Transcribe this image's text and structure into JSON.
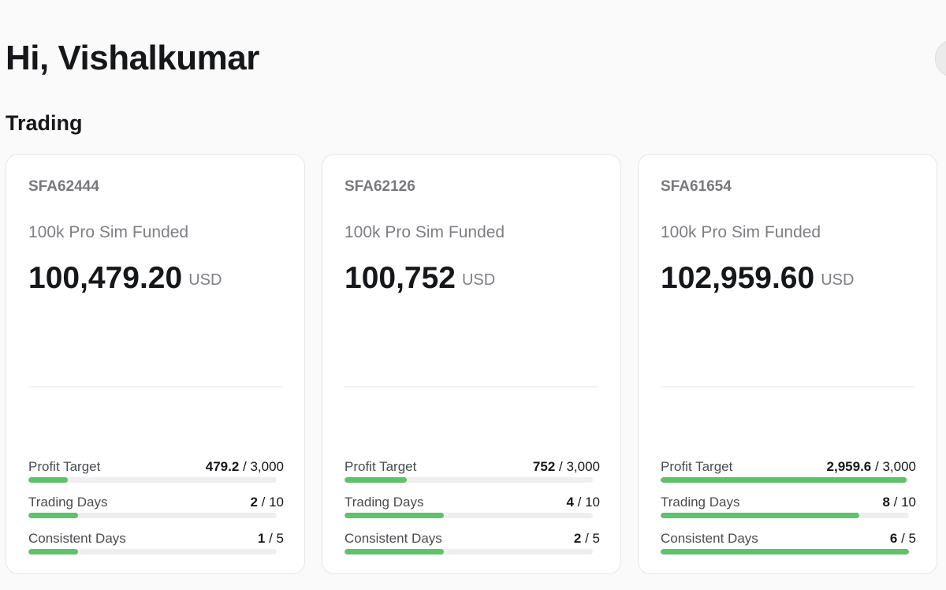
{
  "header": {
    "greeting": "Hi, Vishalkumar"
  },
  "section": {
    "title": "Trading"
  },
  "accounts": [
    {
      "id": "SFA62444",
      "plan": "100k Pro Sim Funded",
      "balance": "100,479.20",
      "currency": "USD",
      "metrics": [
        {
          "label": "Profit Target",
          "current": "479.2",
          "target": "3,000",
          "progress": 0.16
        },
        {
          "label": "Trading Days",
          "current": "2",
          "target": "10",
          "progress": 0.2
        },
        {
          "label": "Consistent Days",
          "current": "1",
          "target": "5",
          "progress": 0.2
        }
      ]
    },
    {
      "id": "SFA62126",
      "plan": "100k Pro Sim Funded",
      "balance": "100,752",
      "currency": "USD",
      "metrics": [
        {
          "label": "Profit Target",
          "current": "752",
          "target": "3,000",
          "progress": 0.25
        },
        {
          "label": "Trading Days",
          "current": "4",
          "target": "10",
          "progress": 0.4
        },
        {
          "label": "Consistent Days",
          "current": "2",
          "target": "5",
          "progress": 0.4
        }
      ]
    },
    {
      "id": "SFA61654",
      "plan": "100k Pro Sim Funded",
      "balance": "102,959.60",
      "currency": "USD",
      "metrics": [
        {
          "label": "Profit Target",
          "current": "2,959.6",
          "target": "3,000",
          "progress": 0.99
        },
        {
          "label": "Trading Days",
          "current": "8",
          "target": "10",
          "progress": 0.8
        },
        {
          "label": "Consistent Days",
          "current": "6",
          "target": "5",
          "progress": 1.0
        }
      ]
    }
  ],
  "colors": {
    "progress_fill": "#5ec26a",
    "progress_track": "#efeff1"
  }
}
